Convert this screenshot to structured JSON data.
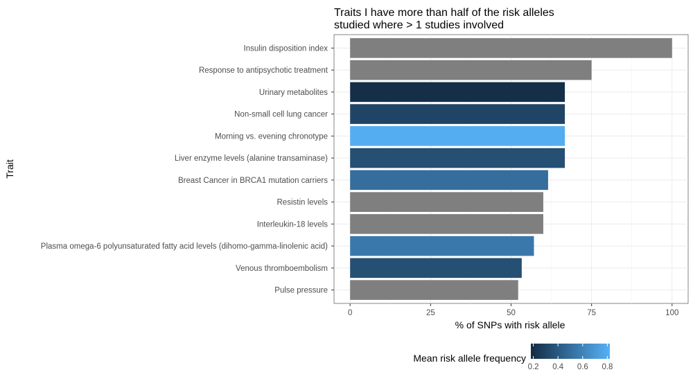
{
  "chart_data": {
    "type": "bar",
    "orientation": "horizontal",
    "title_lines": [
      "Traits I have more than half of the risk alleles",
      "studied where > 1 studies involved"
    ],
    "xlabel": "% of SNPs with risk allele",
    "ylabel": "Trait",
    "xlim": [
      -5,
      105
    ],
    "x_ticks": [
      0,
      25,
      50,
      75,
      100
    ],
    "grid": true,
    "categories": [
      "Insulin disposition index",
      "Response to antipsychotic treatment",
      "Urinary metabolites",
      "Non-small cell lung cancer",
      "Morning vs. evening chronotype",
      "Liver enzyme levels (alanine transaminase)",
      "Breast Cancer in BRCA1 mutation carriers",
      "Resistin levels",
      "Interleukin-18 levels",
      "Plasma omega-6 polyunsaturated fatty acid levels (dihomo-gamma-linolenic acid)",
      "Venous thromboembolism",
      "Pulse pressure"
    ],
    "values": [
      100,
      75,
      66.7,
      66.7,
      66.7,
      66.7,
      61.5,
      60,
      60,
      57.1,
      53.3,
      52.2
    ],
    "fill_values": [
      null,
      null,
      0.2,
      0.3,
      0.8,
      0.35,
      0.5,
      null,
      null,
      0.55,
      0.35,
      null
    ],
    "na_color": "#7f7f7f",
    "legend": {
      "title": "Mean risk allele frequency",
      "position": "bottom",
      "ticks": [
        0.2,
        0.4,
        0.6,
        0.8
      ],
      "range": [
        0.18,
        0.82
      ],
      "low_color": "#132b43",
      "high_color": "#56b1f7"
    }
  }
}
